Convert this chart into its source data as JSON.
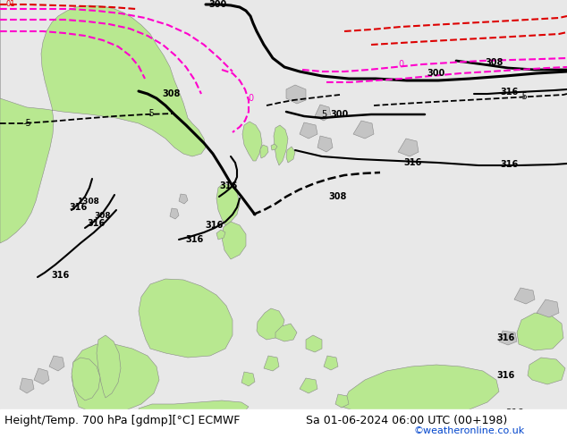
{
  "title_left": "Height/Temp. 700 hPa [gdmp][°C] ECMWF",
  "title_right": "Sa 01-06-2024 06:00 UTC (00+198)",
  "watermark": "©weatheronline.co.uk",
  "bg_color": "#d8d8d8",
  "land_green_color": "#b8e890",
  "land_gray_color": "#c4c4c4",
  "ocean_color": "#e8e8e8",
  "contour_black_color": "#000000",
  "contour_magenta_color": "#ff00cc",
  "contour_red_color": "#dd0000",
  "text_color": "#000000",
  "watermark_color": "#0044cc",
  "font_size_title": 9,
  "bottom_bar_color": "#ffffff"
}
